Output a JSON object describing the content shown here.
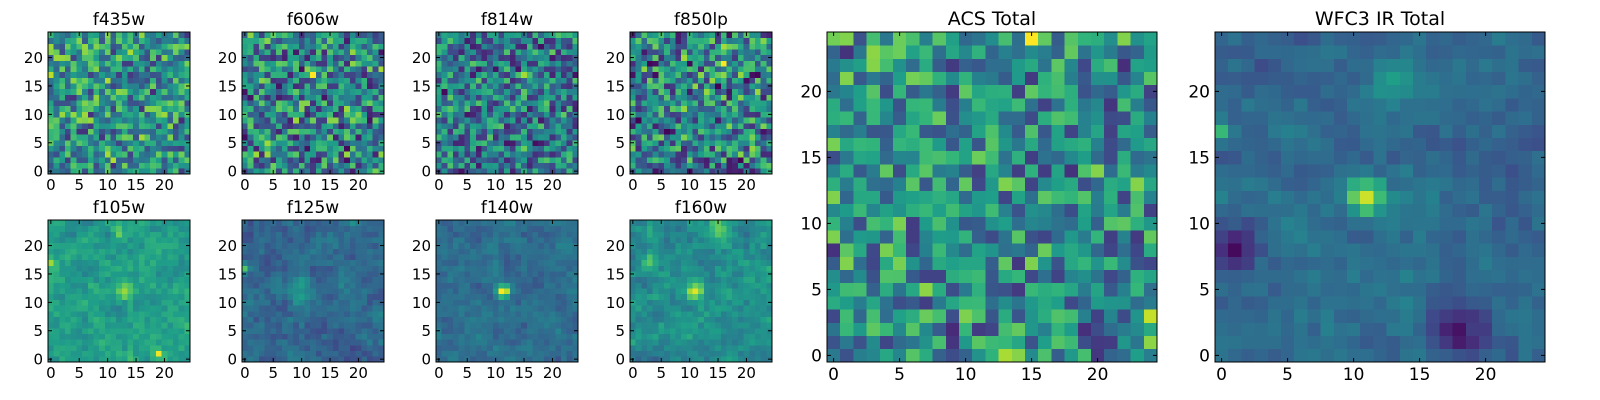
{
  "figure": {
    "colormap": "viridis",
    "colormap_stops": [
      "#440154",
      "#482878",
      "#3e4a89",
      "#31688e",
      "#26828e",
      "#1f9e89",
      "#35b779",
      "#6ece58",
      "#b5de2b",
      "#fde725"
    ]
  },
  "chart_data": [
    {
      "type": "heatmap",
      "title": "f435w",
      "grid_size": 25,
      "xticks": [
        "0",
        "5",
        "10",
        "15",
        "20"
      ],
      "yticks": [
        "0",
        "5",
        "10",
        "15",
        "20"
      ],
      "xlim": [
        0,
        24
      ],
      "ylim": [
        0,
        24
      ],
      "seed": 11,
      "bias": 0.5,
      "spread": 0.16,
      "smooth": 0,
      "noise": 0.32,
      "hotspots": [
        {
          "x": 3,
          "y": 10,
          "amp": 0.35,
          "w": 0.6
        },
        {
          "x": 24,
          "y": 2,
          "amp": 0.35,
          "w": 0.6
        }
      ]
    },
    {
      "type": "heatmap",
      "title": "f606w",
      "grid_size": 25,
      "xticks": [
        "0",
        "5",
        "10",
        "15",
        "20"
      ],
      "yticks": [
        "0",
        "5",
        "10",
        "15",
        "20"
      ],
      "xlim": [
        0,
        24
      ],
      "ylim": [
        0,
        24
      ],
      "seed": 23,
      "bias": 0.45,
      "spread": 0.18,
      "smooth": 0,
      "noise": 0.35,
      "hotspots": [
        {
          "x": 9,
          "y": 11,
          "amp": 0.3,
          "w": 0.8
        },
        {
          "x": 12,
          "y": 17,
          "amp": 0.35,
          "w": 0.6
        }
      ]
    },
    {
      "type": "heatmap",
      "title": "f814w",
      "grid_size": 25,
      "xticks": [
        "0",
        "5",
        "10",
        "15",
        "20"
      ],
      "yticks": [
        "0",
        "5",
        "10",
        "15",
        "20"
      ],
      "xlim": [
        0,
        24
      ],
      "ylim": [
        0,
        24
      ],
      "seed": 37,
      "bias": 0.4,
      "spread": 0.14,
      "smooth": 0,
      "noise": 0.32,
      "hotspots": [
        {
          "x": 14,
          "y": 12,
          "amp": 0.35,
          "w": 0.6
        },
        {
          "x": 15,
          "y": 17,
          "amp": 0.3,
          "w": 0.6
        }
      ]
    },
    {
      "type": "heatmap",
      "title": "f850lp",
      "grid_size": 25,
      "xticks": [
        "0",
        "5",
        "10",
        "15",
        "20"
      ],
      "yticks": [
        "0",
        "5",
        "10",
        "15",
        "20"
      ],
      "xlim": [
        0,
        24
      ],
      "ylim": [
        0,
        24
      ],
      "seed": 49,
      "bias": 0.42,
      "spread": 0.18,
      "smooth": 0,
      "noise": 0.36,
      "hotspots": [
        {
          "x": 16,
          "y": 22,
          "amp": 0.45,
          "w": 0.6
        },
        {
          "x": 16,
          "y": 19,
          "amp": 0.4,
          "w": 0.6
        },
        {
          "x": 13,
          "y": 18,
          "amp": 0.3,
          "w": 0.6
        }
      ]
    },
    {
      "type": "heatmap",
      "title": "f105w",
      "grid_size": 25,
      "xticks": [
        "0",
        "5",
        "10",
        "15",
        "20"
      ],
      "yticks": [
        "0",
        "5",
        "10",
        "15",
        "20"
      ],
      "xlim": [
        0,
        24
      ],
      "ylim": [
        0,
        24
      ],
      "seed": 61,
      "bias": 0.55,
      "spread": 0.12,
      "smooth": 1,
      "noise": 0.18,
      "hotspots": [
        {
          "x": 13,
          "y": 12,
          "amp": 0.35,
          "w": 1.0
        },
        {
          "x": 12,
          "y": 22,
          "amp": 0.3,
          "w": 0.7
        },
        {
          "x": 19,
          "y": 1,
          "amp": 0.35,
          "w": 0.6
        },
        {
          "x": 0,
          "y": 17,
          "amp": 0.3,
          "w": 0.7
        }
      ]
    },
    {
      "type": "heatmap",
      "title": "f125w",
      "grid_size": 25,
      "xticks": [
        "0",
        "5",
        "10",
        "15",
        "20"
      ],
      "yticks": [
        "0",
        "5",
        "10",
        "15",
        "20"
      ],
      "xlim": [
        0,
        24
      ],
      "ylim": [
        0,
        24
      ],
      "seed": 73,
      "bias": 0.33,
      "spread": 0.12,
      "smooth": 1,
      "noise": 0.18,
      "hotspots": [
        {
          "x": 10,
          "y": 12,
          "amp": 0.2,
          "w": 2.0
        },
        {
          "x": 0,
          "y": 16,
          "amp": 0.5,
          "w": 0.6
        }
      ]
    },
    {
      "type": "heatmap",
      "title": "f140w",
      "grid_size": 25,
      "xticks": [
        "0",
        "5",
        "10",
        "15",
        "20"
      ],
      "yticks": [
        "0",
        "5",
        "10",
        "15",
        "20"
      ],
      "xlim": [
        0,
        24
      ],
      "ylim": [
        0,
        24
      ],
      "seed": 89,
      "bias": 0.36,
      "spread": 0.1,
      "smooth": 1,
      "noise": 0.16,
      "hotspots": [
        {
          "x": 11,
          "y": 12,
          "amp": 0.6,
          "w": 0.7
        },
        {
          "x": 12,
          "y": 12,
          "amp": 0.3,
          "w": 0.7
        }
      ]
    },
    {
      "type": "heatmap",
      "title": "f160w",
      "grid_size": 25,
      "xticks": [
        "0",
        "5",
        "10",
        "15",
        "20"
      ],
      "yticks": [
        "0",
        "5",
        "10",
        "15",
        "20"
      ],
      "xlim": [
        0,
        24
      ],
      "ylim": [
        0,
        24
      ],
      "seed": 97,
      "bias": 0.48,
      "spread": 0.13,
      "smooth": 1,
      "noise": 0.18,
      "hotspots": [
        {
          "x": 11,
          "y": 12,
          "amp": 0.5,
          "w": 1.0
        },
        {
          "x": 15,
          "y": 23,
          "amp": 0.35,
          "w": 1.3
        },
        {
          "x": 3,
          "y": 17,
          "amp": 0.25,
          "w": 1.0
        }
      ]
    },
    {
      "type": "heatmap",
      "title": "ACS Total",
      "grid_size": 25,
      "xticks": [
        "0",
        "5",
        "10",
        "15",
        "20"
      ],
      "yticks": [
        "0",
        "5",
        "10",
        "15",
        "20"
      ],
      "xlim": [
        0,
        24
      ],
      "ylim": [
        0,
        24
      ],
      "seed": 131,
      "bias": 0.48,
      "spread": 0.14,
      "smooth": 0,
      "noise": 0.3,
      "hotspots": [
        {
          "x": 4,
          "y": 22,
          "amp": 0.45,
          "w": 0.6
        },
        {
          "x": 15,
          "y": 24,
          "amp": 0.45,
          "w": 0.6
        },
        {
          "x": 12,
          "y": 15,
          "amp": 0.45,
          "w": 0.6
        },
        {
          "x": 24,
          "y": 2,
          "amp": 0.35,
          "w": 0.6
        },
        {
          "x": 13,
          "y": 0,
          "amp": 0.35,
          "w": 0.6
        }
      ]
    },
    {
      "type": "heatmap",
      "title": "WFC3 IR Total",
      "grid_size": 25,
      "xticks": [
        "0",
        "5",
        "10",
        "15",
        "20"
      ],
      "yticks": [
        "0",
        "5",
        "10",
        "15",
        "20"
      ],
      "xlim": [
        0,
        24
      ],
      "ylim": [
        0,
        24
      ],
      "seed": 151,
      "bias": 0.34,
      "spread": 0.1,
      "smooth": 1,
      "noise": 0.14,
      "hotspots": [
        {
          "x": 11,
          "y": 12,
          "amp": 0.6,
          "w": 1.0
        },
        {
          "x": 13,
          "y": 21,
          "amp": 0.3,
          "w": 1.2
        },
        {
          "x": 0,
          "y": 17,
          "amp": 0.3,
          "w": 0.6
        },
        {
          "x": 18,
          "y": 2,
          "amp": -0.25,
          "w": 1.5
        },
        {
          "x": 1,
          "y": 8,
          "amp": -0.2,
          "w": 1.2
        }
      ]
    }
  ]
}
